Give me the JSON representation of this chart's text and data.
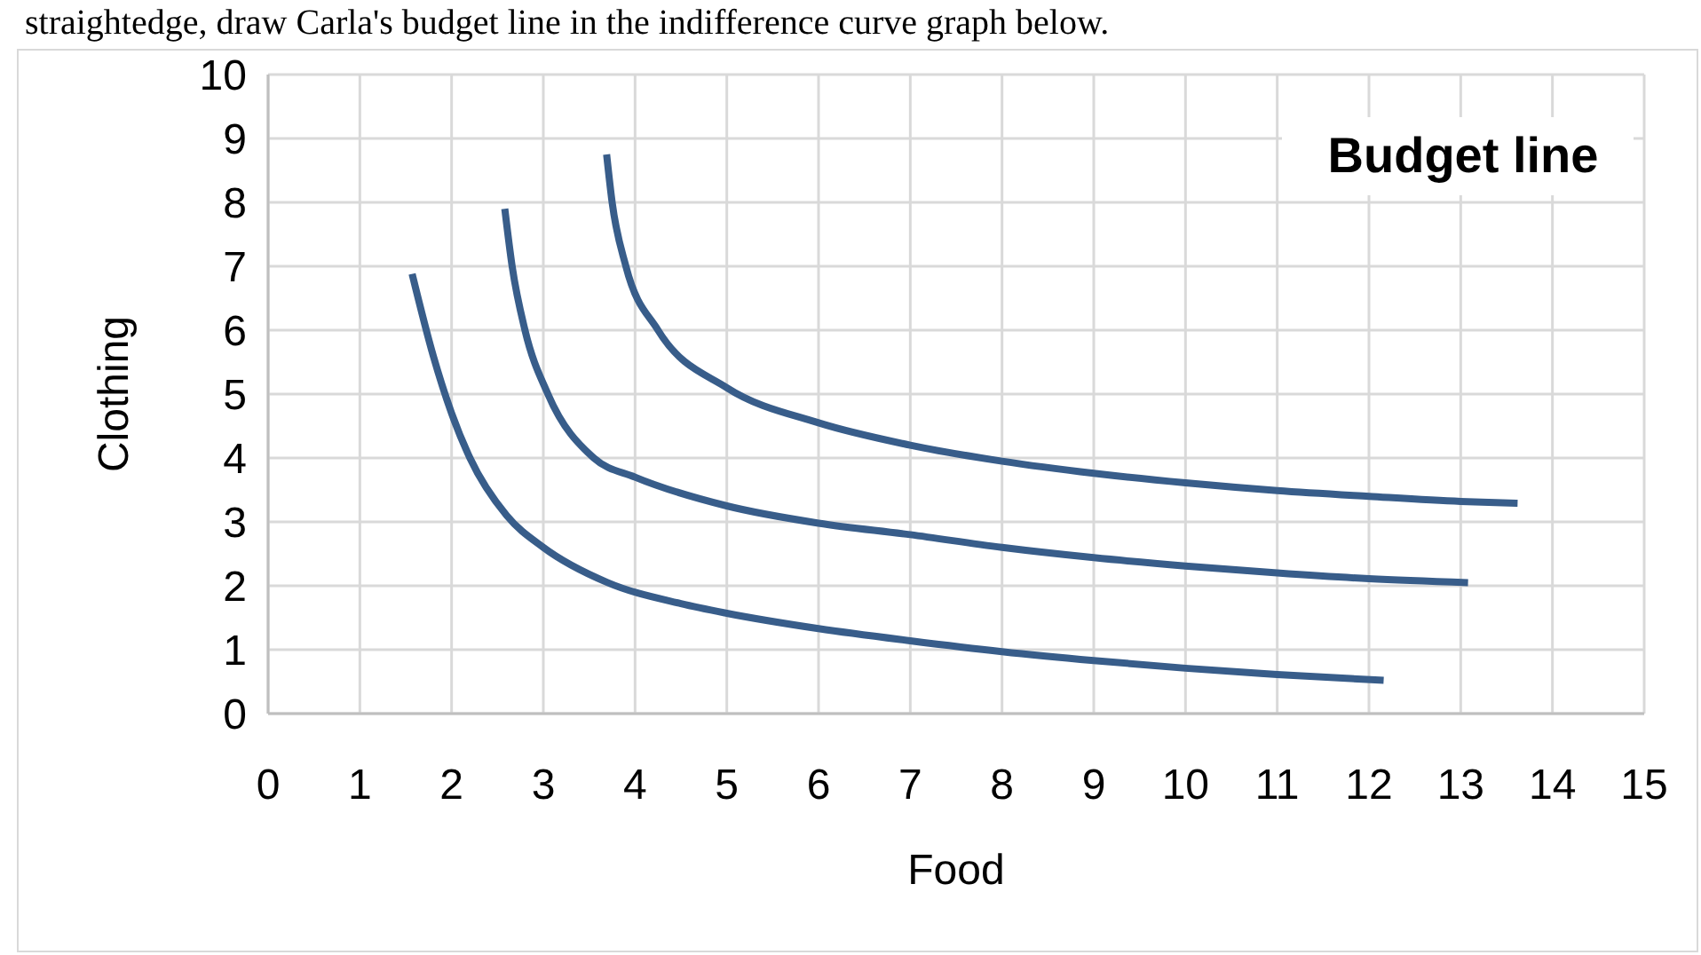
{
  "chart_data": {
    "type": "line",
    "xlabel": "Food",
    "ylabel": "Clothing",
    "annotations": [
      "straightedge, draw Carla's budget line in the indifference curve graph below.",
      "Budget line"
    ],
    "xlim": [
      0,
      15
    ],
    "ylim": [
      0,
      10
    ],
    "xticks": [
      0,
      1,
      2,
      3,
      4,
      5,
      6,
      7,
      8,
      9,
      10,
      11,
      12,
      13,
      14,
      15
    ],
    "yticks": [
      0,
      1,
      2,
      3,
      4,
      5,
      6,
      7,
      8,
      9,
      10
    ],
    "grid": true,
    "line_style": "solid",
    "series": [
      {
        "color": "#385d8a",
        "x": [
          1.57,
          1.8,
          2.0,
          2.2,
          2.6,
          3.0,
          3.7,
          4.5,
          5,
          6,
          7,
          8,
          9,
          10,
          11,
          12.16
        ],
        "values": [
          6.88,
          5.6,
          4.7,
          4.0,
          3.1,
          2.6,
          2.05,
          1.72,
          1.57,
          1.33,
          1.14,
          0.97,
          0.83,
          0.71,
          0.61,
          0.52
        ]
      },
      {
        "color": "#385d8a",
        "x": [
          2.58,
          2.66,
          2.8,
          3.05,
          3.55,
          4,
          5,
          6,
          7,
          8,
          9,
          10,
          11,
          12,
          13.08
        ],
        "values": [
          7.9,
          7.0,
          6.0,
          5.0,
          4.0,
          3.7,
          3.25,
          2.98,
          2.8,
          2.6,
          2.44,
          2.31,
          2.2,
          2.11,
          2.05
        ]
      },
      {
        "color": "#385d8a",
        "x": [
          3.69,
          3.75,
          3.9,
          4.25,
          5,
          6,
          7,
          8,
          9,
          10,
          11,
          12,
          13,
          13.62
        ],
        "values": [
          8.75,
          8.0,
          7.0,
          6.0,
          5.1,
          4.55,
          4.2,
          3.95,
          3.76,
          3.61,
          3.49,
          3.4,
          3.32,
          3.29
        ]
      }
    ]
  }
}
